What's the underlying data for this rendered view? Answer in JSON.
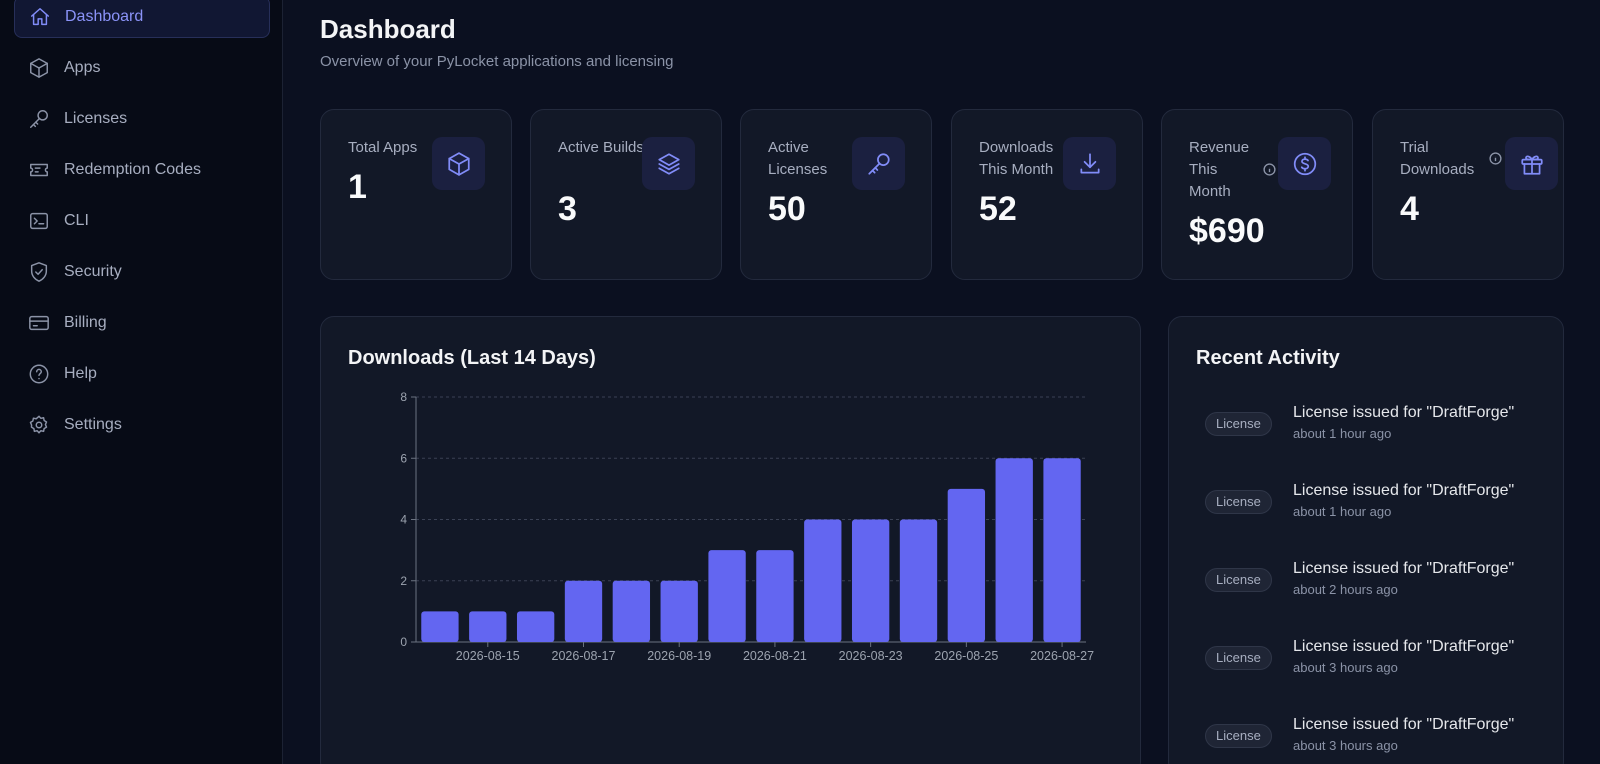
{
  "sidebar": {
    "items": [
      {
        "label": "Dashboard",
        "icon": "home-icon",
        "active": true
      },
      {
        "label": "Apps",
        "icon": "cube-icon"
      },
      {
        "label": "Licenses",
        "icon": "key-icon"
      },
      {
        "label": "Redemption Codes",
        "icon": "ticket-icon"
      },
      {
        "label": "CLI",
        "icon": "terminal-icon"
      },
      {
        "label": "Security",
        "icon": "shield-check-icon"
      },
      {
        "label": "Billing",
        "icon": "credit-card-icon"
      },
      {
        "label": "Help",
        "icon": "question-circle-icon"
      },
      {
        "label": "Settings",
        "icon": "gear-icon"
      }
    ]
  },
  "header": {
    "title": "Dashboard",
    "subtitle": "Overview of your PyLocket applications and licensing"
  },
  "stats": [
    {
      "label": "Total Apps",
      "value": "1",
      "icon": "cube-icon"
    },
    {
      "label": "Active Builds",
      "value": "3",
      "icon": "layers-icon"
    },
    {
      "label": "Active Licenses",
      "value": "50",
      "icon": "key-icon"
    },
    {
      "label": "Downloads This Month",
      "value": "52",
      "icon": "download-icon"
    },
    {
      "label": "Revenue This Month",
      "value": "$690",
      "icon": "dollar-circle-icon",
      "info": true
    },
    {
      "label": "Trial Downloads",
      "value": "4",
      "icon": "gift-icon",
      "info": true
    }
  ],
  "chart_panel": {
    "title": "Downloads (Last 14 Days)"
  },
  "chart_data": {
    "type": "bar",
    "categories": [
      "2026-08-14",
      "2026-08-15",
      "2026-08-16",
      "2026-08-17",
      "2026-08-18",
      "2026-08-19",
      "2026-08-20",
      "2026-08-21",
      "2026-08-22",
      "2026-08-23",
      "2026-08-24",
      "2026-08-25",
      "2026-08-26",
      "2026-08-27"
    ],
    "tick_labels": [
      "2026-08-15",
      "2026-08-17",
      "2026-08-19",
      "2026-08-21",
      "2026-08-23",
      "2026-08-25",
      "2026-08-27"
    ],
    "values": [
      1,
      1,
      1,
      2,
      2,
      2,
      3,
      3,
      4,
      4,
      4,
      5,
      6,
      6
    ],
    "title": "Downloads (Last 14 Days)",
    "ylim": [
      0,
      8
    ],
    "yticks": [
      0,
      2,
      4,
      6,
      8
    ],
    "grid": true,
    "bar_color": "#6366f1"
  },
  "activity": {
    "title": "Recent Activity",
    "items": [
      {
        "badge": "License",
        "text": "License issued for \"DraftForge\"",
        "time": "about 1 hour ago"
      },
      {
        "badge": "License",
        "text": "License issued for \"DraftForge\"",
        "time": "about 1 hour ago"
      },
      {
        "badge": "License",
        "text": "License issued for \"DraftForge\"",
        "time": "about 2 hours ago"
      },
      {
        "badge": "License",
        "text": "License issued for \"DraftForge\"",
        "time": "about 3 hours ago"
      },
      {
        "badge": "License",
        "text": "License issued for \"DraftForge\"",
        "time": "about 3 hours ago"
      }
    ]
  }
}
